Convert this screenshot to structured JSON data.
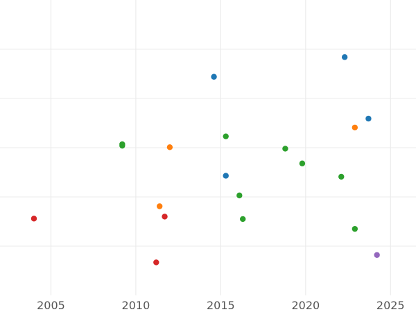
{
  "chart_data": {
    "type": "scatter",
    "title": "",
    "xlabel": "",
    "ylabel": "",
    "xlim": [
      2002.0,
      2026.5
    ],
    "ylim": [
      0,
      6
    ],
    "x_ticks": [
      "2005",
      "2010",
      "2015",
      "2020",
      "2025"
    ],
    "y_gridlines": [
      1,
      2,
      3,
      4,
      5
    ],
    "grid": true,
    "legend": "none",
    "colors": {
      "blue": "#1f77b4",
      "orange": "#ff7f0e",
      "green": "#2ca02c",
      "red": "#d62728",
      "purple": "#9467bd"
    },
    "series": [
      {
        "color": "#1f77b4",
        "points": [
          {
            "x": 2014.6,
            "y": 4.44
          },
          {
            "x": 2022.3,
            "y": 4.84
          },
          {
            "x": 2023.7,
            "y": 3.59
          },
          {
            "x": 2015.3,
            "y": 2.43
          }
        ]
      },
      {
        "color": "#ff7f0e",
        "points": [
          {
            "x": 2012.0,
            "y": 3.01
          },
          {
            "x": 2022.9,
            "y": 3.41
          },
          {
            "x": 2011.4,
            "y": 1.81
          }
        ]
      },
      {
        "color": "#2ca02c",
        "points": [
          {
            "x": 2009.2,
            "y": 3.07
          },
          {
            "x": 2009.2,
            "y": 3.04
          },
          {
            "x": 2015.3,
            "y": 3.23
          },
          {
            "x": 2018.8,
            "y": 2.98
          },
          {
            "x": 2019.8,
            "y": 2.68
          },
          {
            "x": 2022.1,
            "y": 2.41
          },
          {
            "x": 2016.1,
            "y": 2.03
          },
          {
            "x": 2016.3,
            "y": 1.55
          },
          {
            "x": 2022.9,
            "y": 1.35
          }
        ]
      },
      {
        "color": "#d62728",
        "points": [
          {
            "x": 2004.0,
            "y": 1.56
          },
          {
            "x": 2011.7,
            "y": 1.6
          },
          {
            "x": 2011.2,
            "y": 0.67
          }
        ]
      },
      {
        "color": "#9467bd",
        "points": [
          {
            "x": 2024.2,
            "y": 0.82
          }
        ]
      }
    ]
  }
}
